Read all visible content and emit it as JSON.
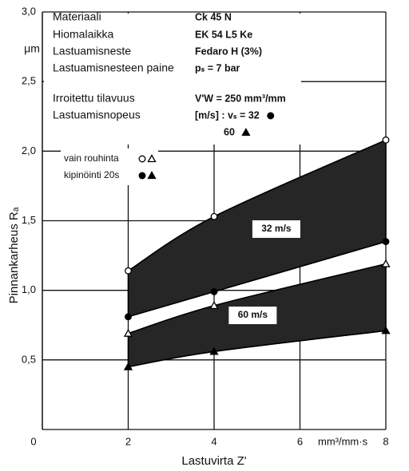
{
  "chart_data": {
    "type": "line",
    "x_label": "Lastuvirta Z'",
    "x_unit": "mm³/mm·s",
    "y_label": "Pinnankarheus  Rₐ",
    "y_unit": "μm",
    "x": [
      2,
      4,
      8
    ],
    "xlim": [
      0,
      8
    ],
    "ylim": [
      0,
      3
    ],
    "xticks": [
      0,
      2,
      4,
      6,
      8
    ],
    "yticks": [
      {
        "value": 0.5,
        "label": "0,5"
      },
      {
        "value": 1.0,
        "label": "1,0"
      },
      {
        "value": 1.5,
        "label": "1,5"
      },
      {
        "value": 2.0,
        "label": "2,0"
      },
      {
        "value": 2.5,
        "label": "2,5"
      },
      {
        "value": 3.0,
        "label": "3,0"
      }
    ],
    "grid": true,
    "band_color": "#262626",
    "series": [
      {
        "marker": "circle",
        "filled": false,
        "color": "#000000",
        "values": [
          1.14,
          1.53,
          2.08
        ]
      },
      {
        "marker": "circle",
        "filled": true,
        "color": "#000000",
        "values": [
          0.81,
          0.99,
          1.35
        ]
      },
      {
        "marker": "triangle",
        "filled": false,
        "color": "#000000",
        "values": [
          0.69,
          0.89,
          1.19
        ]
      },
      {
        "marker": "triangle",
        "filled": true,
        "color": "#000000",
        "values": [
          0.45,
          0.56,
          0.71
        ]
      }
    ],
    "band_labels": [
      "32 m/s",
      "60 m/s"
    ],
    "legend": [
      "vain rouhinta",
      "kipinöinti 20s"
    ],
    "info": [
      [
        "Materiaali",
        "Ck 45 N"
      ],
      [
        "Hiomalaikka",
        "EK 54 L5 Ke"
      ],
      [
        "Lastuamisneste",
        "Fedaro H (3%)"
      ],
      [
        "Lastuamisnesteen paine",
        "pₛ  =  7 bar"
      ],
      [
        "Irroitettu tilavuus",
        "V'W  =  250 mm³/mm"
      ],
      [
        "Lastuamisnopeus",
        "[m/s] :  vₛ  =  32"
      ],
      [
        "",
        "60"
      ]
    ]
  }
}
